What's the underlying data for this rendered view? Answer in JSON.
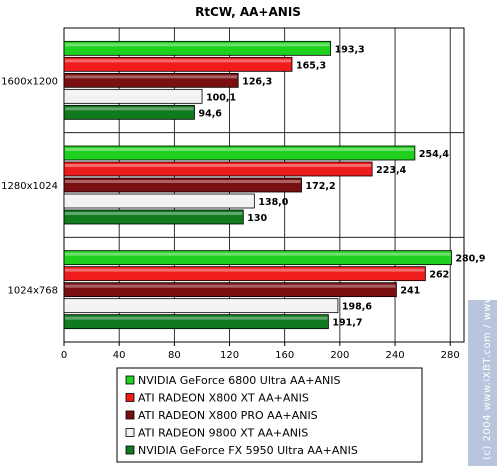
{
  "chart_data": {
    "type": "bar",
    "orientation": "horizontal",
    "title": "RtCW, AA+ANIS",
    "categories": [
      "1600x1200",
      "1280x1024",
      "1024x768"
    ],
    "series": [
      {
        "name": "NVIDIA GeForce 6800 Ultra AA+ANIS",
        "color": "#1fd01f",
        "values": [
          193.3,
          254.4,
          280.9
        ],
        "labels": [
          "193,3",
          "254,4",
          "280,9"
        ]
      },
      {
        "name": "ATI RADEON X800 XT AA+ANIS",
        "color": "#ee1c1c",
        "values": [
          165.3,
          223.4,
          262
        ],
        "labels": [
          "165,3",
          "223,4",
          "262"
        ]
      },
      {
        "name": "ATI RADEON X800 PRO AA+ANIS",
        "color": "#7a0f12",
        "values": [
          126.3,
          172.2,
          241
        ],
        "labels": [
          "126,3",
          "172,2",
          "241"
        ]
      },
      {
        "name": "ATI RADEON 9800 XT AA+ANIS",
        "color": "#f2f2f2",
        "values": [
          100.1,
          138.0,
          198.6
        ],
        "labels": [
          "100,1",
          "138,0",
          "198,6"
        ]
      },
      {
        "name": "NVIDIA GeForce FX 5950 Ultra AA+ANIS",
        "color": "#0f7a1e",
        "values": [
          94.6,
          130,
          191.7
        ],
        "labels": [
          "94,6",
          "130",
          "191,7"
        ]
      }
    ],
    "xlim": [
      0,
      290
    ],
    "xticks": [
      0,
      40,
      80,
      120,
      160,
      200,
      240,
      280
    ],
    "grid": true,
    "legend_position": "bottom"
  },
  "watermark": "(c) 2004 www.iXBT.com / www.Digit-Life.com"
}
